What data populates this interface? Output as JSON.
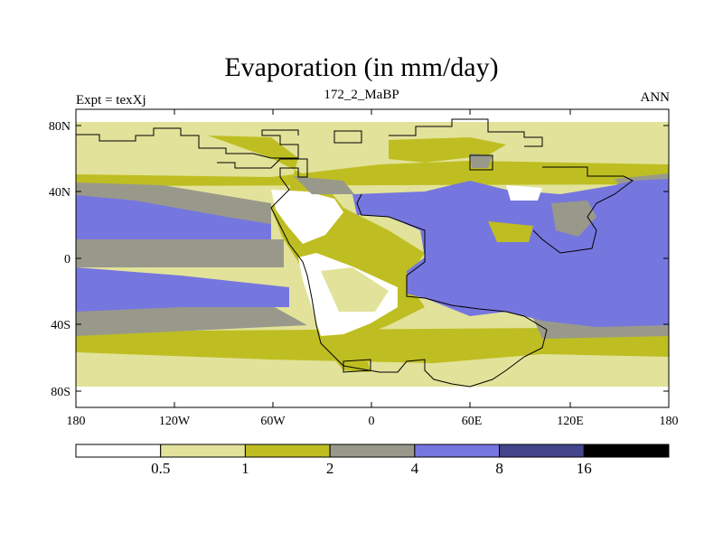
{
  "header": {
    "title": "Evaporation (in mm/day)",
    "left": "Expt = texXj",
    "center": "172_2_MaBP",
    "right": "ANN"
  },
  "axes": {
    "lat_labels": [
      "80N",
      "40N",
      "0",
      "40S",
      "80S"
    ],
    "lon_labels": [
      "180",
      "120W",
      "60W",
      "0",
      "60E",
      "120E",
      "180"
    ]
  },
  "legend": {
    "levels": [
      "0.5",
      "1",
      "2",
      "4",
      "8",
      "16"
    ],
    "colors": [
      "#ffffff",
      "#e2e29a",
      "#bebe22",
      "#99998b",
      "#7676df",
      "#45458c",
      "#000000"
    ]
  },
  "colors": {
    "ocean_high": "#7676df",
    "grey_band": "#99998b",
    "olive": "#bebe22",
    "light": "#e2e29a",
    "desert": "#ffffff"
  }
}
